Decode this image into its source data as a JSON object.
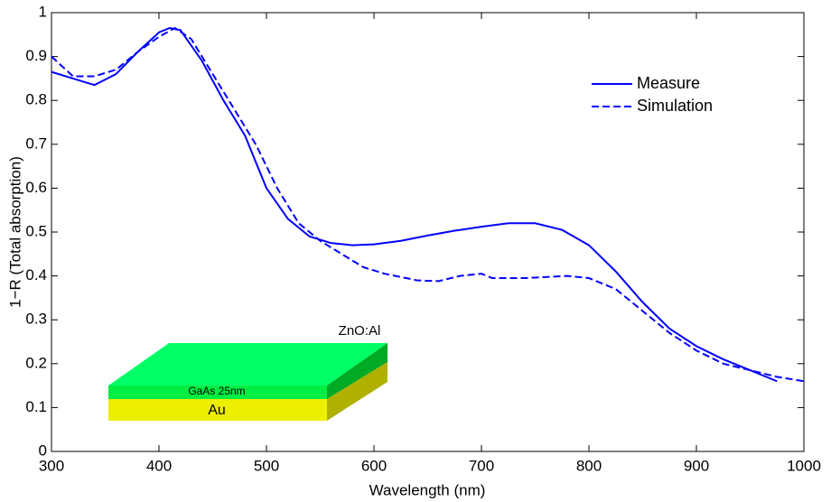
{
  "chart_data": {
    "type": "line",
    "x_label": "Wavelength (nm)",
    "y_label": "1−R (Total absorption)",
    "xlim": [
      300,
      1000
    ],
    "xticks": [
      300,
      400,
      500,
      600,
      700,
      800,
      900,
      1000
    ],
    "ylim": [
      0,
      1
    ],
    "yticks": [
      0,
      0.1,
      0.2,
      0.3,
      0.4,
      0.5,
      0.6,
      0.7,
      0.8,
      0.9,
      1
    ],
    "legend": "top-right",
    "series": [
      {
        "name": "Measure",
        "color": "#0000ff",
        "dash": false,
        "x": [
          300,
          320,
          340,
          360,
          380,
          400,
          410,
          420,
          440,
          460,
          480,
          500,
          520,
          540,
          560,
          580,
          600,
          625,
          650,
          675,
          700,
          725,
          750,
          775,
          800,
          825,
          850,
          875,
          900,
          925,
          950,
          975
        ],
        "values": [
          0.865,
          0.85,
          0.835,
          0.86,
          0.91,
          0.955,
          0.965,
          0.96,
          0.89,
          0.8,
          0.72,
          0.6,
          0.53,
          0.49,
          0.475,
          0.47,
          0.472,
          0.48,
          0.492,
          0.503,
          0.512,
          0.52,
          0.52,
          0.505,
          0.47,
          0.41,
          0.34,
          0.28,
          0.24,
          0.21,
          0.185,
          0.16
        ]
      },
      {
        "name": "Simulation",
        "color": "#0000ff",
        "dash": true,
        "x": [
          300,
          320,
          340,
          360,
          380,
          400,
          415,
          430,
          450,
          470,
          490,
          510,
          530,
          550,
          570,
          590,
          610,
          640,
          660,
          680,
          700,
          710,
          740,
          780,
          800,
          825,
          850,
          875,
          900,
          925,
          950,
          975,
          1000
        ],
        "values": [
          0.9,
          0.855,
          0.855,
          0.87,
          0.91,
          0.945,
          0.965,
          0.94,
          0.86,
          0.78,
          0.7,
          0.6,
          0.52,
          0.48,
          0.45,
          0.42,
          0.405,
          0.39,
          0.388,
          0.4,
          0.405,
          0.395,
          0.395,
          0.4,
          0.395,
          0.37,
          0.32,
          0.27,
          0.23,
          0.2,
          0.185,
          0.17,
          0.16
        ]
      }
    ],
    "inset": {
      "top_layer": "ZnO:Al",
      "middle_layer": "GaAs 25nm",
      "bottom_layer": "Au"
    }
  }
}
